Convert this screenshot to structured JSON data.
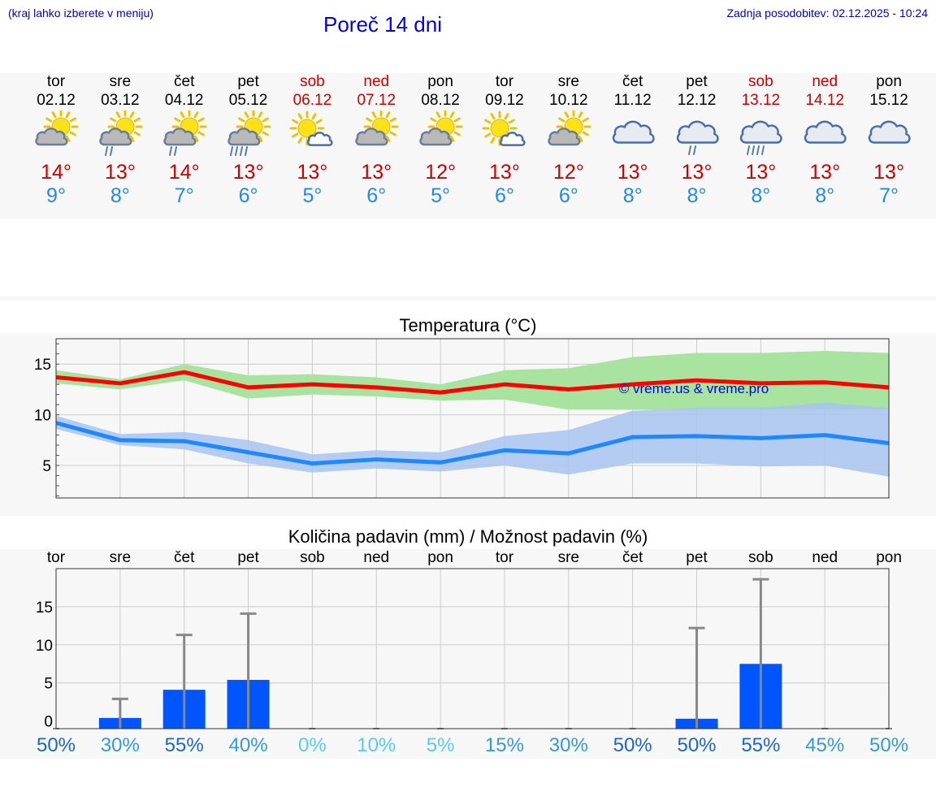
{
  "header": {
    "note": "(kraj lahko izberete v meniju)",
    "title": "Poreč 14 dni",
    "updated": "Zadnja posodobitev: 02.12.2025 - 10:24"
  },
  "colors": {
    "tmax": "#cc0000",
    "tmin": "#2288ee",
    "weekend": "#cc0000",
    "max_band": "#a8e4a0",
    "min_band": "#a8c4f0",
    "max_line": "#ff0000",
    "min_line": "#1e88ff",
    "bar": "#0055ff",
    "whisker": "#888888",
    "watermark": "#0000ee"
  },
  "days": [
    {
      "name": "tor",
      "date": "02.12",
      "weekend": false,
      "icon": "sun-cloud-icon",
      "tmax": "14°",
      "tmin": "9°"
    },
    {
      "name": "sre",
      "date": "03.12",
      "weekend": false,
      "icon": "sun-cloud-rain-icon",
      "tmax": "13°",
      "tmin": "8°"
    },
    {
      "name": "čet",
      "date": "04.12",
      "weekend": false,
      "icon": "sun-cloud-rain-icon",
      "tmax": "14°",
      "tmin": "7°"
    },
    {
      "name": "pet",
      "date": "05.12",
      "weekend": false,
      "icon": "sun-cloud-heavy-rain-icon",
      "tmax": "13°",
      "tmin": "6°"
    },
    {
      "name": "sob",
      "date": "06.12",
      "weekend": true,
      "icon": "sun-small-cloud-icon",
      "tmax": "13°",
      "tmin": "5°"
    },
    {
      "name": "ned",
      "date": "07.12",
      "weekend": true,
      "icon": "sun-cloud-icon",
      "tmax": "13°",
      "tmin": "6°"
    },
    {
      "name": "pon",
      "date": "08.12",
      "weekend": false,
      "icon": "sun-cloud-icon",
      "tmax": "12°",
      "tmin": "5°"
    },
    {
      "name": "tor",
      "date": "09.12",
      "weekend": false,
      "icon": "sun-small-cloud-icon",
      "tmax": "13°",
      "tmin": "6°"
    },
    {
      "name": "sre",
      "date": "10.12",
      "weekend": false,
      "icon": "sun-cloud-icon",
      "tmax": "12°",
      "tmin": "6°"
    },
    {
      "name": "čet",
      "date": "11.12",
      "weekend": false,
      "icon": "cloud-icon",
      "tmax": "13°",
      "tmin": "8°"
    },
    {
      "name": "pet",
      "date": "12.12",
      "weekend": false,
      "icon": "cloud-rain-icon",
      "tmax": "13°",
      "tmin": "8°"
    },
    {
      "name": "sob",
      "date": "13.12",
      "weekend": true,
      "icon": "cloud-heavy-rain-icon",
      "tmax": "13°",
      "tmin": "8°"
    },
    {
      "name": "ned",
      "date": "14.12",
      "weekend": true,
      "icon": "cloud-icon",
      "tmax": "13°",
      "tmin": "8°"
    },
    {
      "name": "pon",
      "date": "15.12",
      "weekend": false,
      "icon": "cloud-icon",
      "tmax": "13°",
      "tmin": "7°"
    }
  ],
  "chart_data": [
    {
      "type": "line",
      "title": "Temperatura (°C)",
      "xlabel": "",
      "ylabel": "",
      "ylim": [
        1.8,
        17.5
      ],
      "yticks": [
        5,
        10,
        15
      ],
      "grid": true,
      "watermark": "© vreme.us & vreme.pro",
      "x": [
        0,
        1,
        2,
        3,
        4,
        5,
        6,
        7,
        8,
        9,
        10,
        11,
        12,
        13
      ],
      "series": [
        {
          "name": "max",
          "values": [
            13.7,
            13.1,
            14.2,
            12.7,
            13.0,
            12.7,
            12.2,
            13.0,
            12.5,
            13.0,
            13.4,
            13.1,
            13.2,
            12.7
          ],
          "lower": [
            13.1,
            12.5,
            13.4,
            11.6,
            12.0,
            11.8,
            11.4,
            11.5,
            10.5,
            10.5,
            10.5,
            10.5,
            10.5,
            10.5
          ],
          "upper": [
            14.4,
            13.5,
            15.0,
            13.9,
            14.0,
            13.7,
            13.0,
            14.4,
            14.6,
            15.7,
            16.1,
            16.1,
            16.3,
            16.1
          ]
        },
        {
          "name": "min",
          "values": [
            9.2,
            7.5,
            7.4,
            6.3,
            5.2,
            5.6,
            5.3,
            6.5,
            6.2,
            7.8,
            7.9,
            7.7,
            8.0,
            7.2
          ],
          "lower": [
            8.6,
            7.0,
            6.6,
            5.2,
            4.3,
            4.7,
            4.4,
            5.0,
            4.1,
            5.2,
            5.2,
            4.9,
            5.0,
            3.9
          ],
          "upper": [
            9.9,
            8.1,
            8.3,
            7.5,
            6.1,
            6.5,
            6.3,
            7.9,
            8.5,
            10.4,
            10.7,
            10.7,
            11.2,
            10.7
          ]
        }
      ]
    },
    {
      "type": "bar",
      "title": "Količina padavin (mm) / Možnost padavin (%)",
      "xlabel": "",
      "ylabel": "",
      "ylim": [
        -1,
        20
      ],
      "yticks": [
        0,
        5,
        10,
        15
      ],
      "grid": true,
      "categories": [
        "tor",
        "sre",
        "čet",
        "pet",
        "sob",
        "ned",
        "pon",
        "tor",
        "sre",
        "čet",
        "pet",
        "sob",
        "ned",
        "pon"
      ],
      "values": [
        0,
        0.4,
        4.1,
        5.4,
        0,
        0,
        0,
        0,
        0,
        0,
        0.3,
        7.5,
        0,
        0
      ],
      "whisker_max": [
        0,
        2.9,
        11.3,
        14.1,
        0,
        0,
        0,
        0,
        0,
        0,
        12.2,
        18.6,
        0,
        0
      ],
      "probability": [
        "50%",
        "30%",
        "55%",
        "40%",
        "0%",
        "10%",
        "5%",
        "15%",
        "30%",
        "50%",
        "50%",
        "55%",
        "45%",
        "50%"
      ],
      "probability_colors": [
        "#1a66cc",
        "#3399dd",
        "#1a66cc",
        "#3399dd",
        "#55ccee",
        "#55ccee",
        "#55ccee",
        "#3399dd",
        "#3399dd",
        "#1a66cc",
        "#1a66cc",
        "#1a66cc",
        "#3399dd",
        "#3399dd"
      ]
    }
  ]
}
